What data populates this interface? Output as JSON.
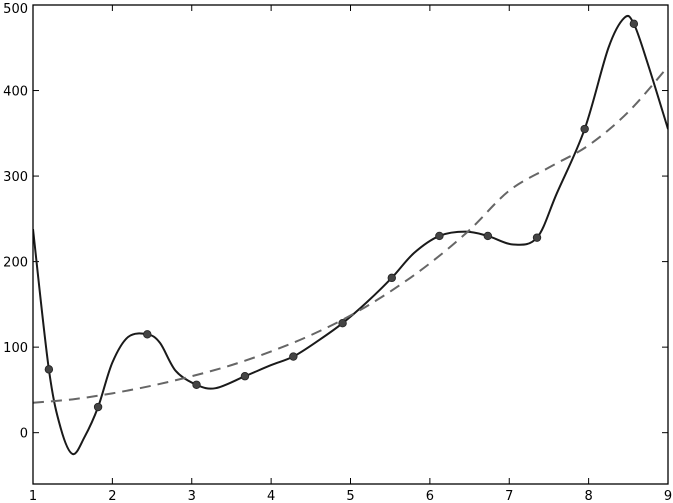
{
  "chart_data": {
    "type": "line",
    "title": "",
    "xlabel": "",
    "ylabel": "",
    "xlim": [
      1,
      9
    ],
    "ylim": [
      -60,
      500
    ],
    "grid": false,
    "legend": "none",
    "x_ticks": [
      1,
      2,
      3,
      4,
      5,
      6,
      7,
      8,
      9
    ],
    "y_ticks": [
      0,
      100,
      200,
      300,
      400,
      500
    ],
    "series": [
      {
        "style": "markers",
        "color": "#444444",
        "x": [
          1.2,
          1.82,
          2.44,
          3.06,
          3.67,
          4.28,
          4.9,
          5.52,
          6.12,
          6.73,
          7.35,
          7.95,
          8.57
        ],
        "y": [
          74,
          30,
          115,
          56,
          66,
          89,
          128,
          181,
          230,
          230,
          228,
          355,
          478
        ]
      },
      {
        "style": "solid",
        "color": "#1a1a1a",
        "x": [
          1.0,
          1.2,
          1.35,
          1.5,
          1.65,
          1.82,
          2.0,
          2.2,
          2.44,
          2.6,
          2.8,
          3.06,
          3.3,
          3.67,
          4.0,
          4.28,
          4.6,
          4.9,
          5.2,
          5.52,
          5.8,
          6.12,
          6.45,
          6.73,
          7.05,
          7.35,
          7.6,
          7.95,
          8.25,
          8.45,
          8.57,
          8.75,
          9.0
        ],
        "y": [
          238,
          74,
          5,
          -25,
          -5,
          30,
          82,
          112,
          115,
          105,
          72,
          56,
          52,
          66,
          79,
          89,
          108,
          128,
          152,
          181,
          210,
          230,
          235,
          230,
          220,
          228,
          280,
          355,
          450,
          485,
          478,
          430,
          355
        ]
      },
      {
        "style": "dashed",
        "color": "#666666",
        "x": [
          1.0,
          1.5,
          2.0,
          2.5,
          3.0,
          3.5,
          4.0,
          4.5,
          5.0,
          5.5,
          6.0,
          6.5,
          7.0,
          7.5,
          8.0,
          8.5,
          9.0
        ],
        "y": [
          35,
          39,
          46,
          55,
          66,
          79,
          95,
          114,
          137,
          165,
          198,
          237,
          283,
          310,
          336,
          375,
          428
        ]
      }
    ]
  }
}
